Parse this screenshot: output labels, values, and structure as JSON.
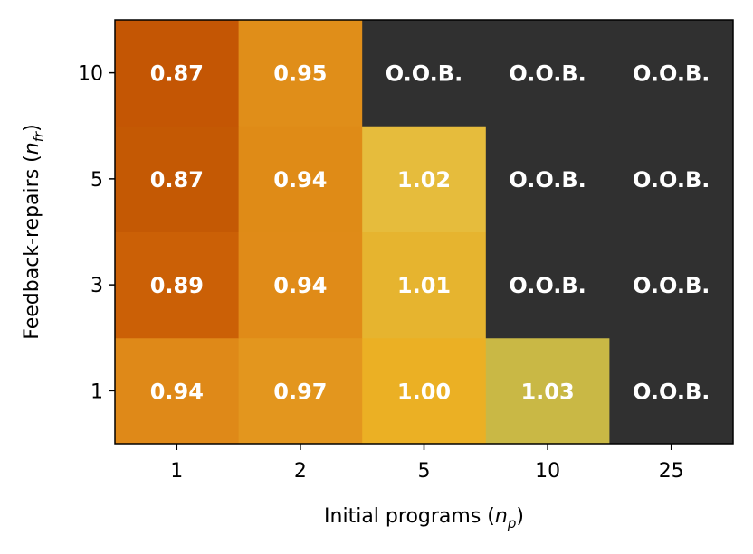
{
  "chart_data": {
    "type": "heatmap",
    "title": "",
    "xlabel": "Initial programs",
    "xlabel_symbol": "n",
    "xlabel_subscript": "p",
    "ylabel": "Feedback-repairs",
    "ylabel_symbol": "n",
    "ylabel_subscript": "fr",
    "x_categories": [
      "1",
      "2",
      "5",
      "10",
      "25"
    ],
    "y_categories": [
      "1",
      "3",
      "5",
      "10"
    ],
    "oob_label": "O.O.B.",
    "oob_color": "#303030",
    "cells": [
      [
        "0.94",
        "0.97",
        "1.00",
        "1.03",
        "O.O.B."
      ],
      [
        "0.89",
        "0.94",
        "1.01",
        "O.O.B.",
        "O.O.B."
      ],
      [
        "0.87",
        "0.94",
        "1.02",
        "O.O.B.",
        "O.O.B."
      ],
      [
        "0.87",
        "0.95",
        "O.O.B.",
        "O.O.B.",
        "O.O.B."
      ]
    ],
    "colors": [
      [
        "#df8918",
        "#e3961e",
        "#ebb024",
        "#c9b845",
        "#303030"
      ],
      [
        "#cb6006",
        "#e08b18",
        "#e6b42f",
        "#303030",
        "#303030"
      ],
      [
        "#c45904",
        "#df8b17",
        "#e6bc3c",
        "#303030",
        "#303030"
      ],
      [
        "#c45604",
        "#e08e19",
        "#303030",
        "#303030",
        "#303030"
      ]
    ]
  }
}
